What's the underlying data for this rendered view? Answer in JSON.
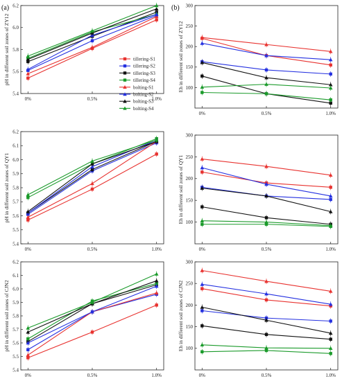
{
  "panel_labels": [
    "(a)",
    "(b)"
  ],
  "colors": {
    "tillering-S1": "#e8322f",
    "tillering-S2": "#2430e0",
    "tillering-S3": "#111111",
    "tillering-S4": "#1a9a2a",
    "bolting-S1": "#e8322f",
    "bolting-S2": "#2430e0",
    "bolting-S3": "#111111",
    "bolting-S4": "#1a9a2a"
  },
  "legend": {
    "entries": [
      {
        "name": "tillering-S1",
        "marker": "square"
      },
      {
        "name": "tillering-S2",
        "marker": "square"
      },
      {
        "name": "tillering-S3",
        "marker": "square"
      },
      {
        "name": "tillering-S4",
        "marker": "square"
      },
      {
        "name": "bolting-S1",
        "marker": "triangle"
      },
      {
        "name": "bolting-S2",
        "marker": "triangle"
      },
      {
        "name": "bolting-S3",
        "marker": "triangle"
      },
      {
        "name": "bolting-S4",
        "marker": "triangle"
      }
    ],
    "placement": "inside panel (a) top, center-right"
  },
  "chart_data": [
    {
      "type": "line",
      "ylabel": "pH in different soil zones of ZY12",
      "categories": [
        "0%",
        "0.5%",
        "1.0%"
      ],
      "ylim": [
        5.4,
        6.2
      ],
      "yticks": [
        "5.4",
        "5.6",
        "5.8",
        "6.0",
        "6.2"
      ],
      "series": [
        {
          "name": "tillering-S1",
          "values": [
            5.54,
            5.81,
            6.07
          ]
        },
        {
          "name": "tillering-S2",
          "values": [
            5.61,
            5.88,
            6.11
          ]
        },
        {
          "name": "tillering-S3",
          "values": [
            5.69,
            5.92,
            6.14
          ]
        },
        {
          "name": "tillering-S4",
          "values": [
            5.72,
            5.96,
            6.12
          ]
        },
        {
          "name": "bolting-S1",
          "values": [
            5.58,
            5.82,
            6.1
          ]
        },
        {
          "name": "bolting-S2",
          "values": [
            5.62,
            5.93,
            6.12
          ]
        },
        {
          "name": "bolting-S3",
          "values": [
            5.71,
            5.95,
            6.17
          ]
        },
        {
          "name": "bolting-S4",
          "values": [
            5.74,
            5.97,
            6.2
          ]
        }
      ]
    },
    {
      "type": "line",
      "ylabel": "Eh in different soil zones of ZY12",
      "categories": [
        "0%",
        "0.5%",
        "1.0%"
      ],
      "ylim": [
        50,
        300
      ],
      "yticks": [
        "100",
        "150",
        "200",
        "250",
        "300"
      ],
      "series": [
        {
          "name": "tillering-S1",
          "values": [
            220,
            178,
            155
          ]
        },
        {
          "name": "tillering-S2",
          "values": [
            163,
            143,
            133
          ]
        },
        {
          "name": "tillering-S3",
          "values": [
            128,
            85,
            62
          ]
        },
        {
          "name": "tillering-S4",
          "values": [
            88,
            85,
            70
          ]
        },
        {
          "name": "bolting-S1",
          "values": [
            222,
            205,
            188
          ]
        },
        {
          "name": "bolting-S2",
          "values": [
            208,
            178,
            168
          ]
        },
        {
          "name": "bolting-S3",
          "values": [
            161,
            124,
            107
          ]
        },
        {
          "name": "bolting-S4",
          "values": [
            101,
            108,
            99
          ]
        }
      ]
    },
    {
      "type": "line",
      "ylabel": "pH in different soil zones of QY1",
      "categories": [
        "0%",
        "0.5%",
        "1.0%"
      ],
      "ylim": [
        5.4,
        6.2
      ],
      "yticks": [
        "5.4",
        "5.5",
        "5.6",
        "5.7",
        "5.8",
        "5.9",
        "6.0",
        "6.1",
        "6.2"
      ],
      "series": [
        {
          "name": "tillering-S1",
          "values": [
            5.57,
            5.79,
            6.04
          ]
        },
        {
          "name": "tillering-S2",
          "values": [
            5.61,
            5.92,
            6.12
          ]
        },
        {
          "name": "tillering-S3",
          "values": [
            5.62,
            5.93,
            6.13
          ]
        },
        {
          "name": "tillering-S4",
          "values": [
            5.73,
            5.97,
            6.15
          ]
        },
        {
          "name": "bolting-S1",
          "values": [
            5.59,
            5.83,
            6.13
          ]
        },
        {
          "name": "bolting-S2",
          "values": [
            5.62,
            5.95,
            6.14
          ]
        },
        {
          "name": "bolting-S3",
          "values": [
            5.63,
            5.97,
            6.13
          ]
        },
        {
          "name": "bolting-S4",
          "values": [
            5.75,
            5.99,
            6.14
          ]
        }
      ]
    },
    {
      "type": "line",
      "ylabel": "Eh in different soil zones of QY1",
      "categories": [
        "0%",
        "0.5%",
        "1.0%"
      ],
      "ylim": [
        50,
        300
      ],
      "yticks": [
        "100",
        "150",
        "200",
        "250",
        "300"
      ],
      "series": [
        {
          "name": "tillering-S1",
          "values": [
            215,
            190,
            180
          ]
        },
        {
          "name": "tillering-S2",
          "values": [
            180,
            160,
            152
          ]
        },
        {
          "name": "tillering-S3",
          "values": [
            135,
            110,
            95
          ]
        },
        {
          "name": "tillering-S4",
          "values": [
            95,
            95,
            90
          ]
        },
        {
          "name": "bolting-S1",
          "values": [
            245,
            228,
            208
          ]
        },
        {
          "name": "bolting-S2",
          "values": [
            225,
            187,
            160
          ]
        },
        {
          "name": "bolting-S3",
          "values": [
            178,
            160,
            124
          ]
        },
        {
          "name": "bolting-S4",
          "values": [
            103,
            100,
            92
          ]
        }
      ]
    },
    {
      "type": "line",
      "ylabel": "pH in different soil zones of CJN2",
      "categories": [
        "0%",
        "0.5%",
        "1.0%"
      ],
      "ylim": [
        5.4,
        6.2
      ],
      "yticks": [
        "5.4",
        "5.5",
        "5.6",
        "5.7",
        "5.8",
        "5.9",
        "6.0",
        "6.1",
        "6.2"
      ],
      "series": [
        {
          "name": "tillering-S1",
          "values": [
            5.49,
            5.68,
            5.88
          ]
        },
        {
          "name": "tillering-S2",
          "values": [
            5.55,
            5.83,
            5.96
          ]
        },
        {
          "name": "tillering-S3",
          "values": [
            5.61,
            5.89,
            6.03
          ]
        },
        {
          "name": "tillering-S4",
          "values": [
            5.63,
            5.91,
            6.04
          ]
        },
        {
          "name": "bolting-S1",
          "values": [
            5.51,
            5.83,
            5.97
          ]
        },
        {
          "name": "bolting-S2",
          "values": [
            5.6,
            5.83,
            6.02
          ]
        },
        {
          "name": "bolting-S3",
          "values": [
            5.68,
            5.89,
            6.06
          ]
        },
        {
          "name": "bolting-S4",
          "values": [
            5.71,
            5.9,
            6.11
          ]
        }
      ]
    },
    {
      "type": "line",
      "ylabel": "Eh in different soil zones of CJN2",
      "categories": [
        "0%",
        "0.5%",
        "1.0%"
      ],
      "ylim": [
        50,
        300
      ],
      "yticks": [
        "100",
        "150",
        "200",
        "250",
        "300"
      ],
      "series": [
        {
          "name": "tillering-S1",
          "values": [
            238,
            212,
            198
          ]
        },
        {
          "name": "tillering-S2",
          "values": [
            187,
            170,
            163
          ]
        },
        {
          "name": "tillering-S3",
          "values": [
            152,
            132,
            121
          ]
        },
        {
          "name": "tillering-S4",
          "values": [
            92,
            95,
            88
          ]
        },
        {
          "name": "bolting-S1",
          "values": [
            280,
            255,
            232
          ]
        },
        {
          "name": "bolting-S2",
          "values": [
            248,
            226,
            202
          ]
        },
        {
          "name": "bolting-S3",
          "values": [
            195,
            165,
            135
          ]
        },
        {
          "name": "bolting-S4",
          "values": [
            108,
            101,
            100
          ]
        }
      ]
    }
  ]
}
